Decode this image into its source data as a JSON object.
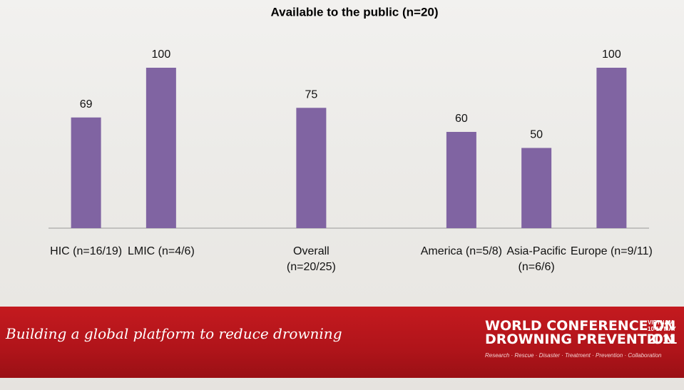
{
  "chart_data": {
    "type": "bar",
    "title": "Available to the public (n=20)",
    "categories": [
      "HIC (n=16/19)",
      "LMIC (n=4/6)",
      null,
      "Overall (n=20/25)",
      null,
      "America (n=5/8)",
      "Asia-Pacific (n=6/6)",
      "Europe (n=9/11)"
    ],
    "values": [
      69,
      100,
      null,
      75,
      null,
      60,
      50,
      100
    ],
    "color": "#8064a2"
  },
  "footer": {
    "slogan": "Building a global platform to reduce drowning",
    "logo_line1": "WORLD CONFERENCE ON",
    "logo_line2": "DROWNING PREVENTION",
    "location": "VIETNAM",
    "dates": "10-13 MAY",
    "year": "2011",
    "tagline": "Research · Rescue · Disaster · Treatment · Prevention · Collaboration"
  }
}
